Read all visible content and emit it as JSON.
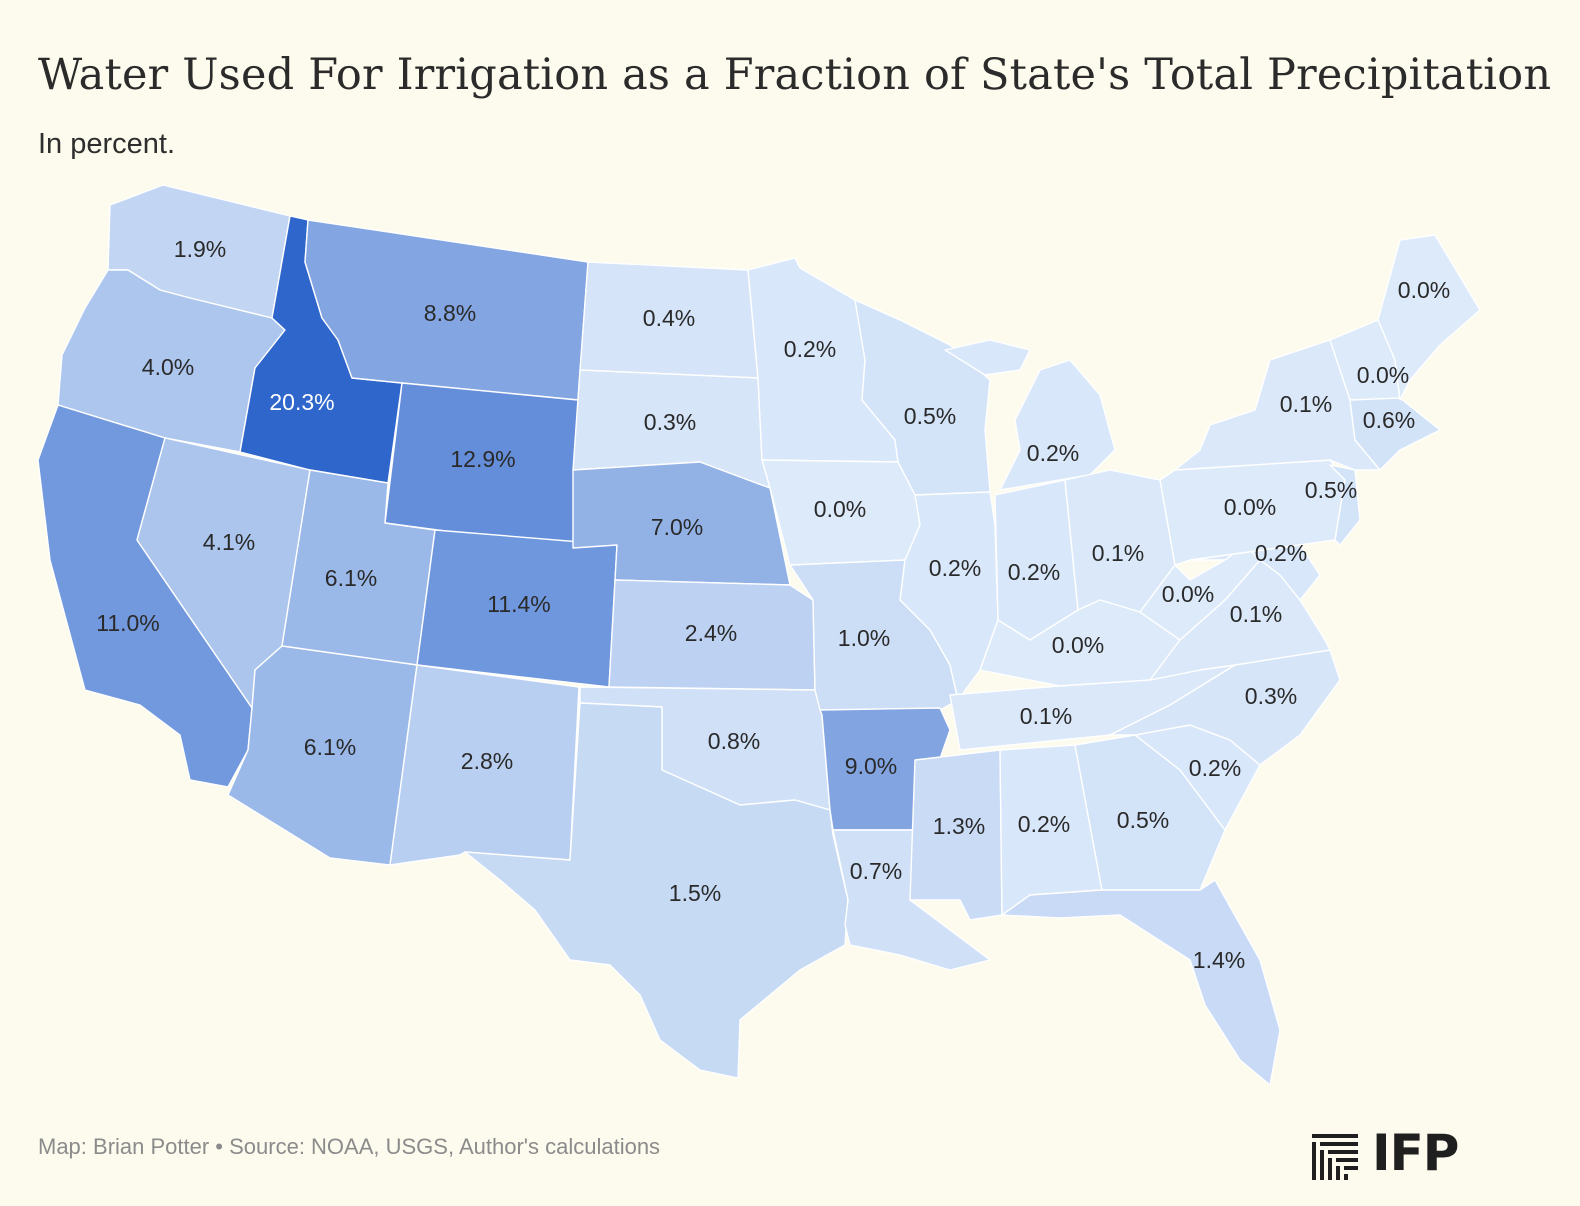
{
  "title": "Water Used For Irrigation as a Fraction of State's Total Precipitation",
  "subtitle": "In percent.",
  "footer": "Map: Brian Potter • Source: NOAA, USGS, Author's calculations",
  "logo": "IFP",
  "chart_data": {
    "type": "choropleth",
    "unit": "%",
    "color_scale": {
      "low": "#dceafa",
      "high": "#2f66cc"
    },
    "states": [
      {
        "id": "WA",
        "label": "1.9%",
        "value": 1.9
      },
      {
        "id": "OR",
        "label": "4.0%",
        "value": 4.0
      },
      {
        "id": "CA",
        "label": "11.0%",
        "value": 11.0
      },
      {
        "id": "ID",
        "label": "20.3%",
        "value": 20.3
      },
      {
        "id": "NV",
        "label": "4.1%",
        "value": 4.1
      },
      {
        "id": "MT",
        "label": "8.8%",
        "value": 8.8
      },
      {
        "id": "WY",
        "label": "12.9%",
        "value": 12.9
      },
      {
        "id": "UT",
        "label": "6.1%",
        "value": 6.1
      },
      {
        "id": "CO",
        "label": "11.4%",
        "value": 11.4
      },
      {
        "id": "AZ",
        "label": "6.1%",
        "value": 6.1
      },
      {
        "id": "NM",
        "label": "2.8%",
        "value": 2.8
      },
      {
        "id": "ND",
        "label": "0.4%",
        "value": 0.4
      },
      {
        "id": "SD",
        "label": "0.3%",
        "value": 0.3
      },
      {
        "id": "NE",
        "label": "7.0%",
        "value": 7.0
      },
      {
        "id": "KS",
        "label": "2.4%",
        "value": 2.4
      },
      {
        "id": "OK",
        "label": "0.8%",
        "value": 0.8
      },
      {
        "id": "TX",
        "label": "1.5%",
        "value": 1.5
      },
      {
        "id": "MN",
        "label": "0.2%",
        "value": 0.2
      },
      {
        "id": "IA",
        "label": "0.0%",
        "value": 0.0
      },
      {
        "id": "MO",
        "label": "1.0%",
        "value": 1.0
      },
      {
        "id": "AR",
        "label": "9.0%",
        "value": 9.0
      },
      {
        "id": "LA",
        "label": "0.7%",
        "value": 0.7
      },
      {
        "id": "WI",
        "label": "0.5%",
        "value": 0.5
      },
      {
        "id": "IL",
        "label": "0.2%",
        "value": 0.2
      },
      {
        "id": "MI",
        "label": "0.2%",
        "value": 0.2
      },
      {
        "id": "IN",
        "label": "0.2%",
        "value": 0.2
      },
      {
        "id": "OH",
        "label": "0.1%",
        "value": 0.1
      },
      {
        "id": "KY",
        "label": "0.0%",
        "value": 0.0
      },
      {
        "id": "TN",
        "label": "0.1%",
        "value": 0.1
      },
      {
        "id": "MS",
        "label": "1.3%",
        "value": 1.3
      },
      {
        "id": "AL",
        "label": "0.2%",
        "value": 0.2
      },
      {
        "id": "GA",
        "label": "0.5%",
        "value": 0.5
      },
      {
        "id": "FL",
        "label": "1.4%",
        "value": 1.4
      },
      {
        "id": "SC",
        "label": "0.2%",
        "value": 0.2
      },
      {
        "id": "NC",
        "label": "0.3%",
        "value": 0.3
      },
      {
        "id": "VA",
        "label": "0.1%",
        "value": 0.1
      },
      {
        "id": "WV",
        "label": "0.0%",
        "value": 0.0
      },
      {
        "id": "MD",
        "label": "0.2%",
        "value": 0.2
      },
      {
        "id": "PA",
        "label": "0.0%",
        "value": 0.0
      },
      {
        "id": "NJ",
        "label": "0.5%",
        "value": 0.5
      },
      {
        "id": "NY",
        "label": "0.1%",
        "value": 0.1
      },
      {
        "id": "VT_NH",
        "label": "0.0%",
        "value": 0.0
      },
      {
        "id": "MA",
        "label": "0.6%",
        "value": 0.6
      },
      {
        "id": "ME",
        "label": "0.0%",
        "value": 0.0
      }
    ]
  }
}
